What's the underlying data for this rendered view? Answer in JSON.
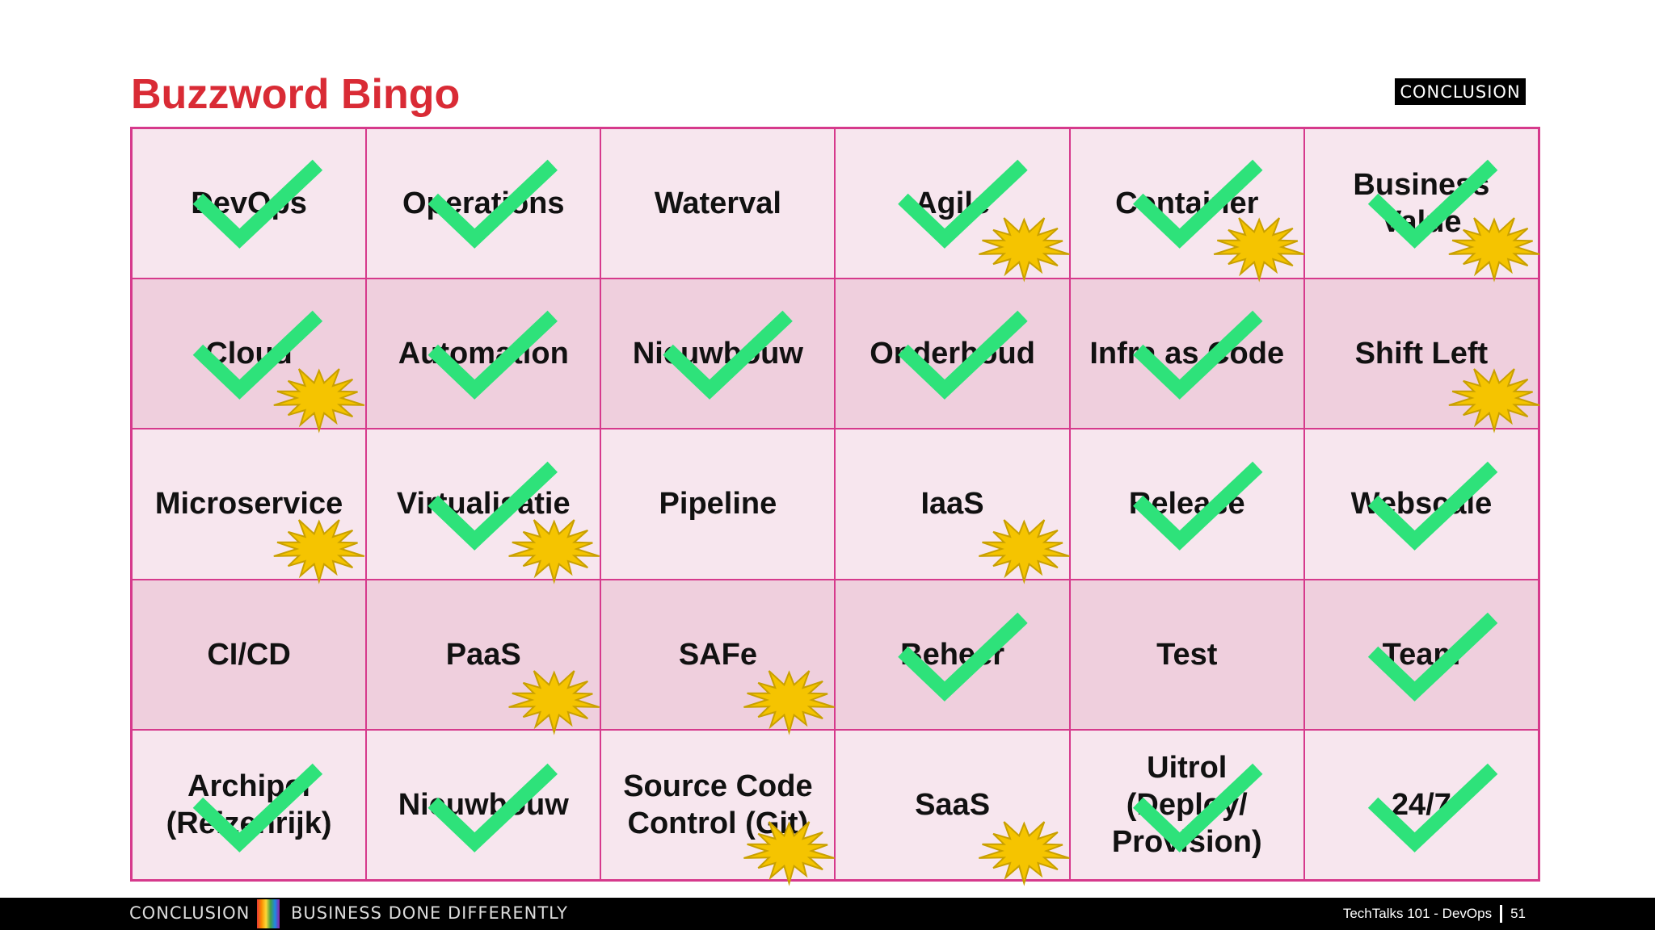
{
  "slide": {
    "title": "Buzzword Bingo",
    "logo": "CONCLUSION"
  },
  "grid": {
    "rows": [
      [
        "DevOps",
        "Operations",
        "Waterval",
        "Agile",
        "Container",
        "Business\nValue"
      ],
      [
        "Cloud",
        "Automation",
        "Nieuwbouw",
        "Onderhoud",
        "Infra as Code",
        "Shift Left"
      ],
      [
        "Microservice",
        "Virtualisatie",
        "Pipeline",
        "IaaS",
        "Release",
        "Webscale"
      ],
      [
        "CI/CD",
        "PaaS",
        "SAFe",
        "Beheer",
        "Test",
        "Team"
      ],
      [
        "Archipel\n(Reizenrijk)",
        "Nieuwbouw",
        "Source Code\nControl (Git)",
        "SaaS",
        "Uitrol\n(Deploy/\nProvision)",
        "24/7"
      ]
    ],
    "checked": [
      [
        true,
        true,
        false,
        true,
        true,
        true
      ],
      [
        true,
        true,
        true,
        true,
        true,
        false
      ],
      [
        false,
        true,
        false,
        false,
        true,
        true
      ],
      [
        false,
        false,
        false,
        true,
        false,
        true
      ],
      [
        true,
        true,
        false,
        false,
        true,
        true
      ]
    ],
    "starred": [
      [
        false,
        false,
        false,
        true,
        true,
        true
      ],
      [
        true,
        false,
        false,
        false,
        false,
        true
      ],
      [
        true,
        true,
        false,
        true,
        false,
        false
      ],
      [
        false,
        true,
        true,
        false,
        false,
        false
      ],
      [
        false,
        false,
        true,
        true,
        false,
        false
      ]
    ]
  },
  "colors": {
    "title": "#d92b35",
    "grid_border": "#d63a8c",
    "check": "#2ee27a",
    "star": "#f5c400",
    "star_outline": "#c9a000"
  },
  "icons": {
    "check": "check-icon",
    "star": "burst-star-icon"
  },
  "footer": {
    "brand": "CONCLUSION",
    "tagline": "BUSINESS DONE DIFFERENTLY",
    "presentation": "TechTalks 101 - DevOps",
    "page_number": "51"
  }
}
